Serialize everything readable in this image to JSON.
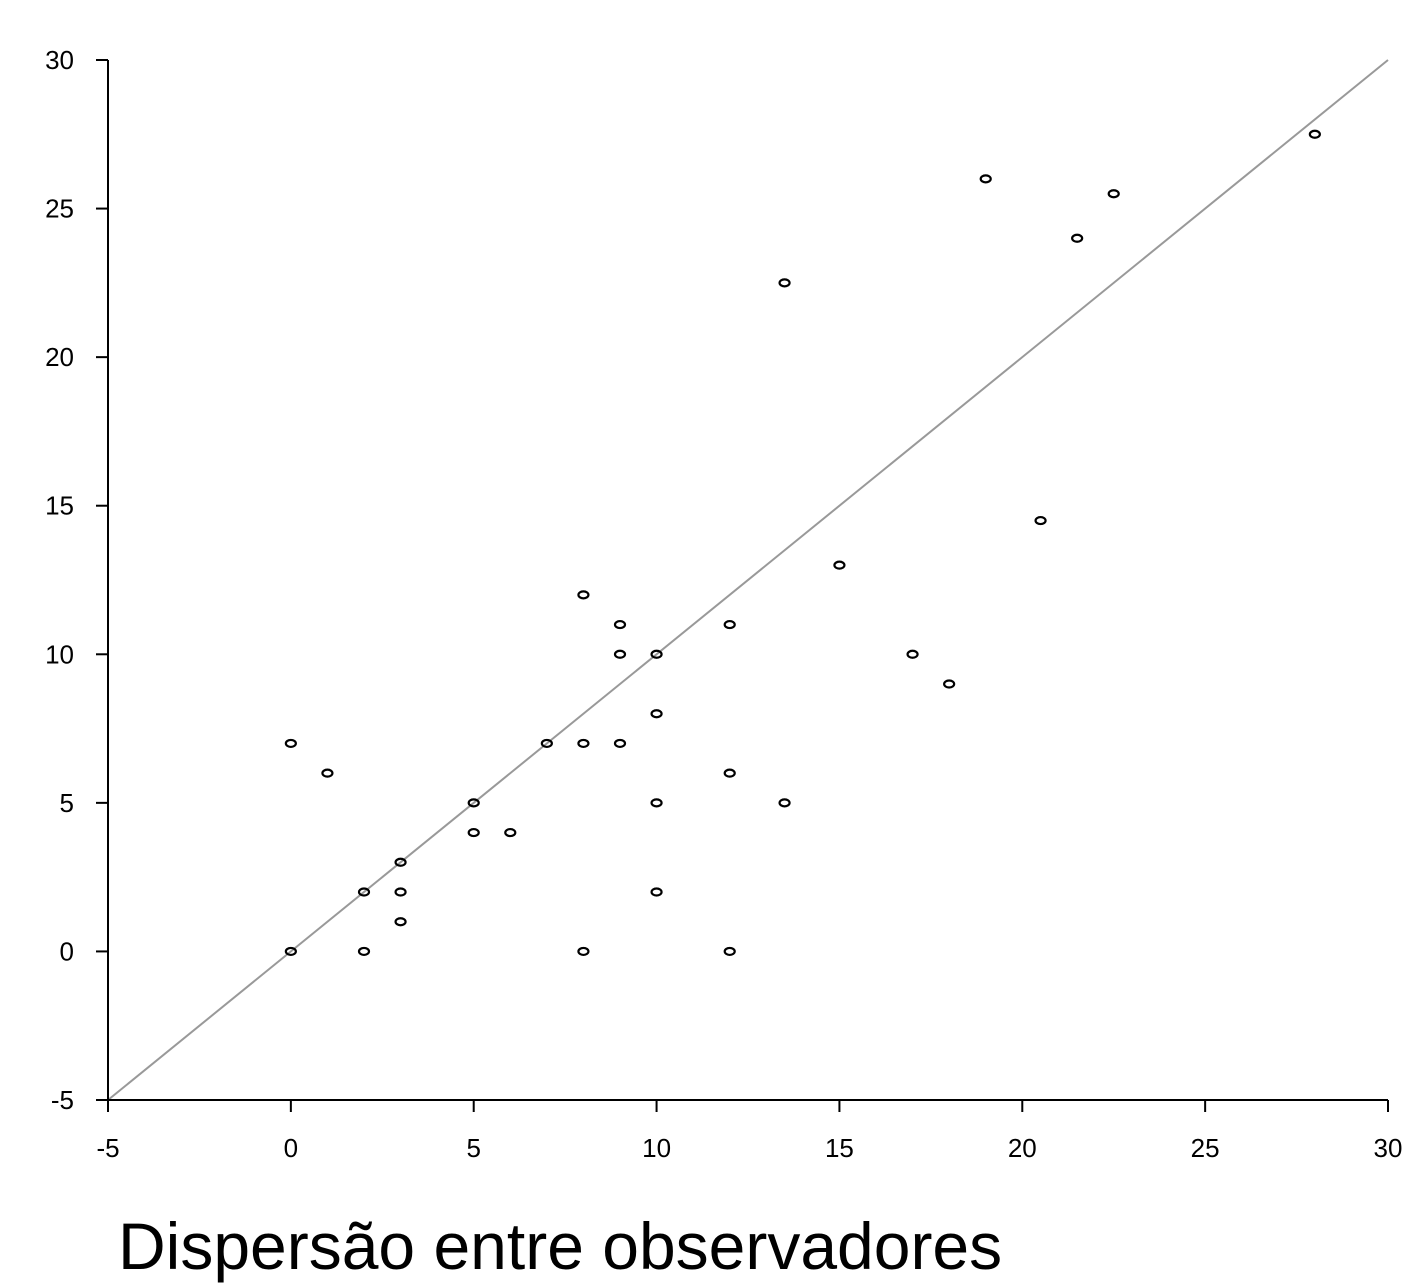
{
  "caption": "Dispersão entre observadores",
  "chart_data": {
    "type": "scatter",
    "title": "",
    "xlabel": "",
    "ylabel": "",
    "xlim": [
      -5,
      30
    ],
    "ylim": [
      -5,
      30
    ],
    "x_ticks": [
      -5,
      0,
      5,
      10,
      15,
      20,
      25,
      30
    ],
    "y_ticks": [
      -5,
      0,
      5,
      10,
      15,
      20,
      25,
      30
    ],
    "grid": false,
    "reference_line": {
      "from": [
        -5,
        -5
      ],
      "to": [
        30,
        30
      ],
      "color": "#999999"
    },
    "marker_color": "#000000",
    "points": [
      {
        "x": 0,
        "y": 0
      },
      {
        "x": 0,
        "y": 7
      },
      {
        "x": 1,
        "y": 6
      },
      {
        "x": 2,
        "y": 0
      },
      {
        "x": 2,
        "y": 2
      },
      {
        "x": 3,
        "y": 1
      },
      {
        "x": 3,
        "y": 2
      },
      {
        "x": 3,
        "y": 3
      },
      {
        "x": 5,
        "y": 4
      },
      {
        "x": 5,
        "y": 5
      },
      {
        "x": 6,
        "y": 4
      },
      {
        "x": 7,
        "y": 7
      },
      {
        "x": 8,
        "y": 0
      },
      {
        "x": 8,
        "y": 7
      },
      {
        "x": 8,
        "y": 12
      },
      {
        "x": 9,
        "y": 7
      },
      {
        "x": 9,
        "y": 10
      },
      {
        "x": 9,
        "y": 11
      },
      {
        "x": 10,
        "y": 2
      },
      {
        "x": 10,
        "y": 5
      },
      {
        "x": 10,
        "y": 8
      },
      {
        "x": 10,
        "y": 10
      },
      {
        "x": 12,
        "y": 0
      },
      {
        "x": 12,
        "y": 6
      },
      {
        "x": 12,
        "y": 11
      },
      {
        "x": 13.5,
        "y": 5
      },
      {
        "x": 13.5,
        "y": 22.5
      },
      {
        "x": 15,
        "y": 13
      },
      {
        "x": 17,
        "y": 10
      },
      {
        "x": 18,
        "y": 9
      },
      {
        "x": 19,
        "y": 26
      },
      {
        "x": 20.5,
        "y": 14.5
      },
      {
        "x": 21.5,
        "y": 24
      },
      {
        "x": 22.5,
        "y": 25.5
      },
      {
        "x": 28,
        "y": 27.5
      }
    ]
  }
}
